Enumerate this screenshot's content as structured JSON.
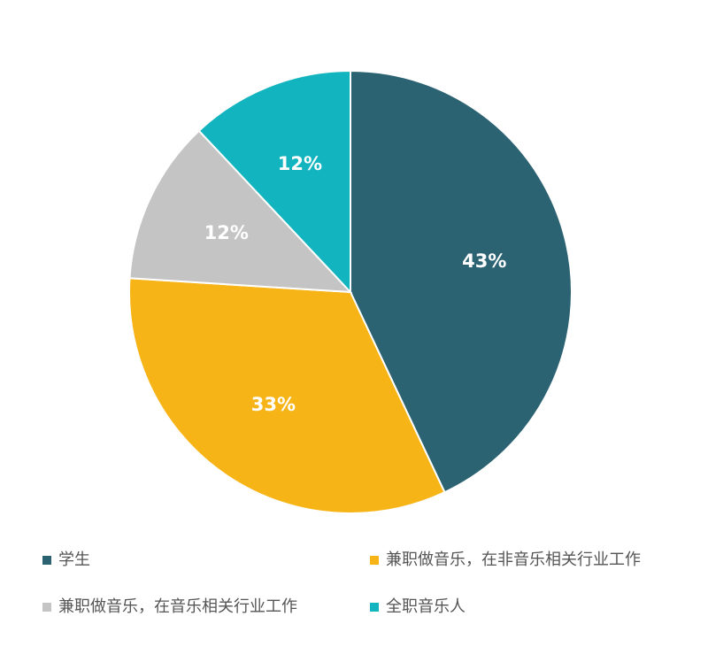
{
  "chart_data": {
    "type": "pie",
    "categories": [
      "学生",
      "兼职做音乐，在非音乐相关行业工作",
      "兼职做音乐，在音乐相关行业工作",
      "全职音乐人"
    ],
    "values": [
      43,
      33,
      12,
      12
    ],
    "value_labels": [
      "43%",
      "33%",
      "12%",
      "12%"
    ],
    "colors": [
      "#2b6373",
      "#f6b417",
      "#c4c4c4",
      "#12b4bf"
    ]
  }
}
